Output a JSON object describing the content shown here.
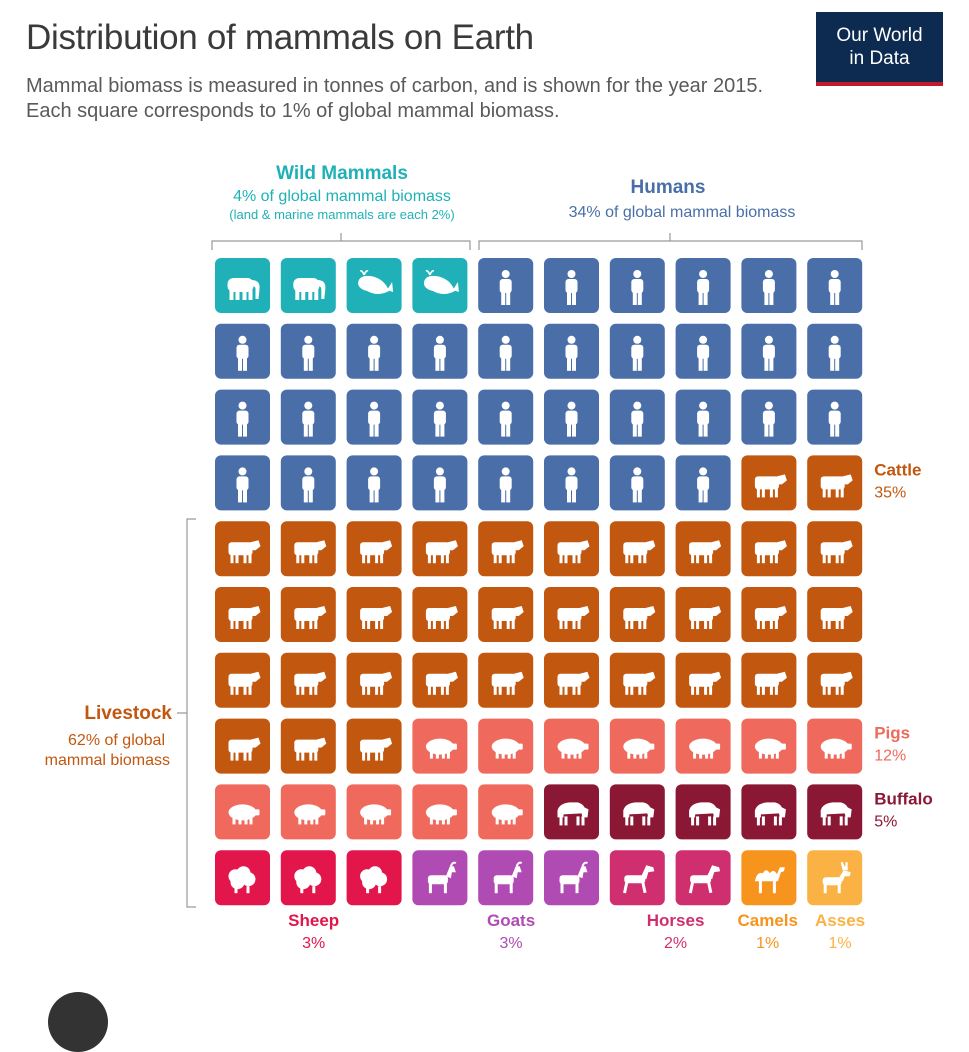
{
  "header": {
    "title": "Distribution of mammals on Earth",
    "subtitle": "Mammal biomass is measured in tonnes of carbon, and is shown for the year 2015. Each square corresponds to 1% of global mammal biomass.",
    "logo_line1": "Our World",
    "logo_line2": "in Data"
  },
  "chart_data": {
    "type": "waffle",
    "unit": "1% of global mammal biomass per square",
    "columns": 10,
    "rows": 10,
    "categories": [
      {
        "name": "Wild Mammals",
        "kind": "elephant",
        "value": 2,
        "color": "#1fb1b7"
      },
      {
        "name": "Wild Mammals",
        "kind": "whale",
        "value": 2,
        "color": "#1fb1b7"
      },
      {
        "name": "Humans",
        "kind": "human",
        "value": 34,
        "color": "#4a6fa8"
      },
      {
        "name": "Cattle",
        "kind": "cow",
        "value": 35,
        "color": "#c2570f"
      },
      {
        "name": "Pigs",
        "kind": "pig",
        "value": 12,
        "color": "#ef6a5c"
      },
      {
        "name": "Buffalo",
        "kind": "buffalo",
        "value": 5,
        "color": "#8a1834"
      },
      {
        "name": "Sheep",
        "kind": "sheep",
        "value": 3,
        "color": "#e2164a"
      },
      {
        "name": "Goats",
        "kind": "goat",
        "value": 3,
        "color": "#b04bb3"
      },
      {
        "name": "Horses",
        "kind": "horse",
        "value": 2,
        "color": "#cf2f6e"
      },
      {
        "name": "Camels",
        "kind": "camel",
        "value": 1,
        "color": "#f7941d"
      },
      {
        "name": "Asses",
        "kind": "ass",
        "value": 1,
        "color": "#fbb244"
      }
    ],
    "groups": {
      "wild": {
        "label": "Wild Mammals",
        "line1": "4% of global mammal biomass",
        "line2": "(land & marine mammals are each 2%)"
      },
      "humans": {
        "label": "Humans",
        "line1": "34% of global mammal biomass"
      },
      "livestock": {
        "label": "Livestock",
        "line1": "62% of global",
        "line2": "mammal biomass"
      }
    },
    "side_labels": [
      {
        "name": "Cattle",
        "pct": "35%",
        "color": "#c2570f"
      },
      {
        "name": "Pigs",
        "pct": "12%",
        "color": "#ef6a5c"
      },
      {
        "name": "Buffalo",
        "pct": "5%",
        "color": "#8a1834"
      }
    ],
    "bottom_labels": [
      {
        "name": "Sheep",
        "pct": "3%",
        "color": "#e2164a"
      },
      {
        "name": "Goats",
        "pct": "3%",
        "color": "#b04bb3"
      },
      {
        "name": "Horses",
        "pct": "2%",
        "color": "#cf2f6e"
      },
      {
        "name": "Camels",
        "pct": "1%",
        "color": "#f7941d"
      },
      {
        "name": "Asses",
        "pct": "1%",
        "color": "#fbb244"
      }
    ]
  }
}
